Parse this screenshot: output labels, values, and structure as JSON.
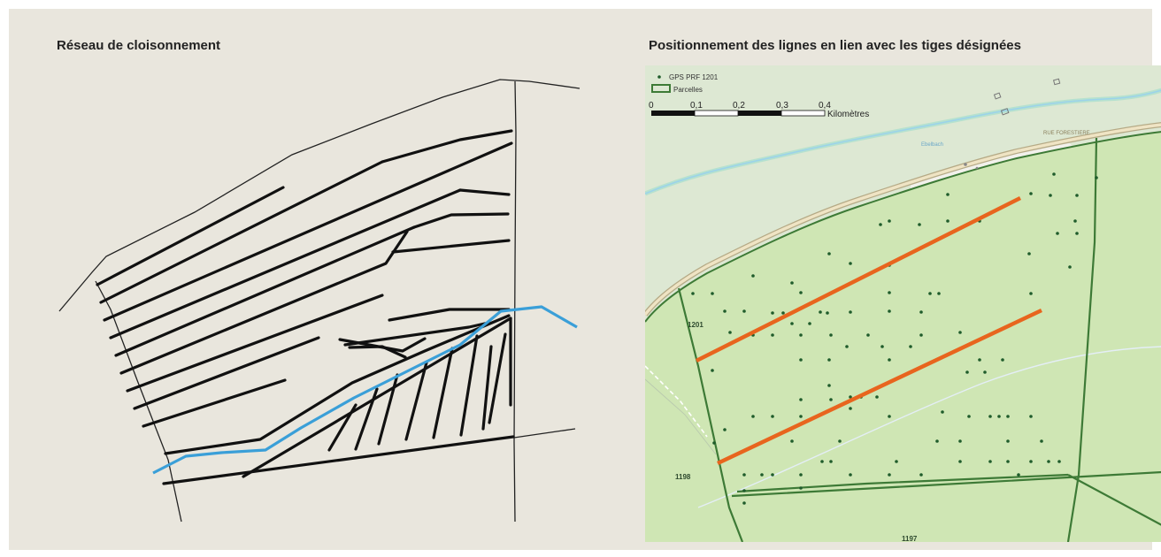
{
  "left_panel": {
    "title": "Réseau de cloisonnement"
  },
  "right_panel": {
    "title": "Positionnement des lignes en lien avec les tiges désignées",
    "legend": {
      "points_label": "GPS PRF 1201",
      "parcels_label": "Parcelles"
    },
    "scale": {
      "ticks": [
        "0",
        "0,1",
        "0,2",
        "0,3",
        "0,4"
      ],
      "unit": "Kilomètres"
    },
    "map_labels": {
      "stream": "Ebelbach",
      "road": "RUE FORESTIERE",
      "parcel_1201": "1201",
      "parcel_1198": "1198",
      "parcel_1197": "1197"
    }
  },
  "colors": {
    "panel_background": "#e9e6dd",
    "stream": "#3a9fd8",
    "sketch_lines": "#111111",
    "forest": "#cfe6b4",
    "parcel_border": "#3d7a36",
    "gps_points": "#1f5c2b",
    "cloisonnement_lines": "#e8651e"
  }
}
